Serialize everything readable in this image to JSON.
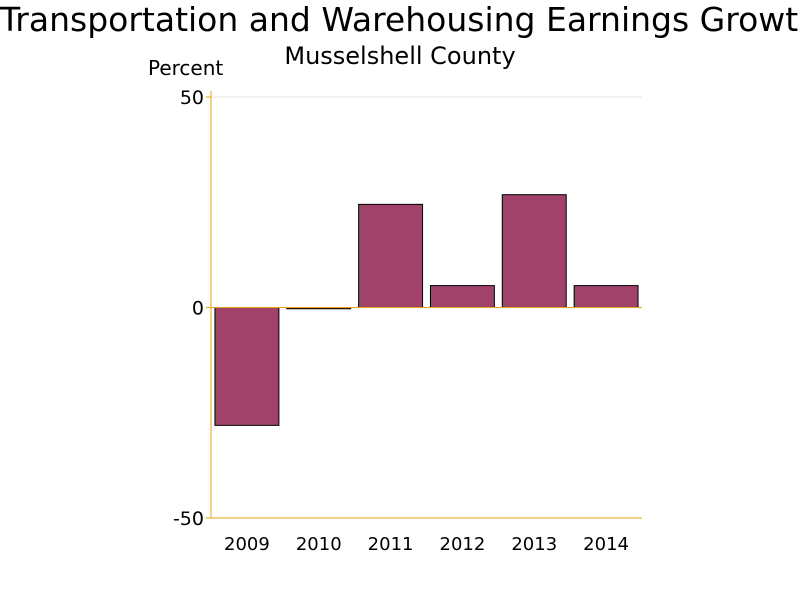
{
  "chart_data": {
    "type": "bar",
    "title": "Transportation and Warehousing Earnings Growth",
    "subtitle": "Musselshell County",
    "xlabel": "",
    "ylabel": "Percent",
    "categories": [
      "2009",
      "2010",
      "2011",
      "2012",
      "2013",
      "2014"
    ],
    "values": [
      -28,
      -0.3,
      24.5,
      5.2,
      26.8,
      5.2
    ],
    "ylim": [
      -50,
      50
    ],
    "yticks": [
      -50,
      0,
      50
    ],
    "ytick_labels": [
      "-50",
      "0",
      "50"
    ],
    "grid": true,
    "legend": "none",
    "bar_color": "#a0426a",
    "axis_color": "#e8a317"
  }
}
